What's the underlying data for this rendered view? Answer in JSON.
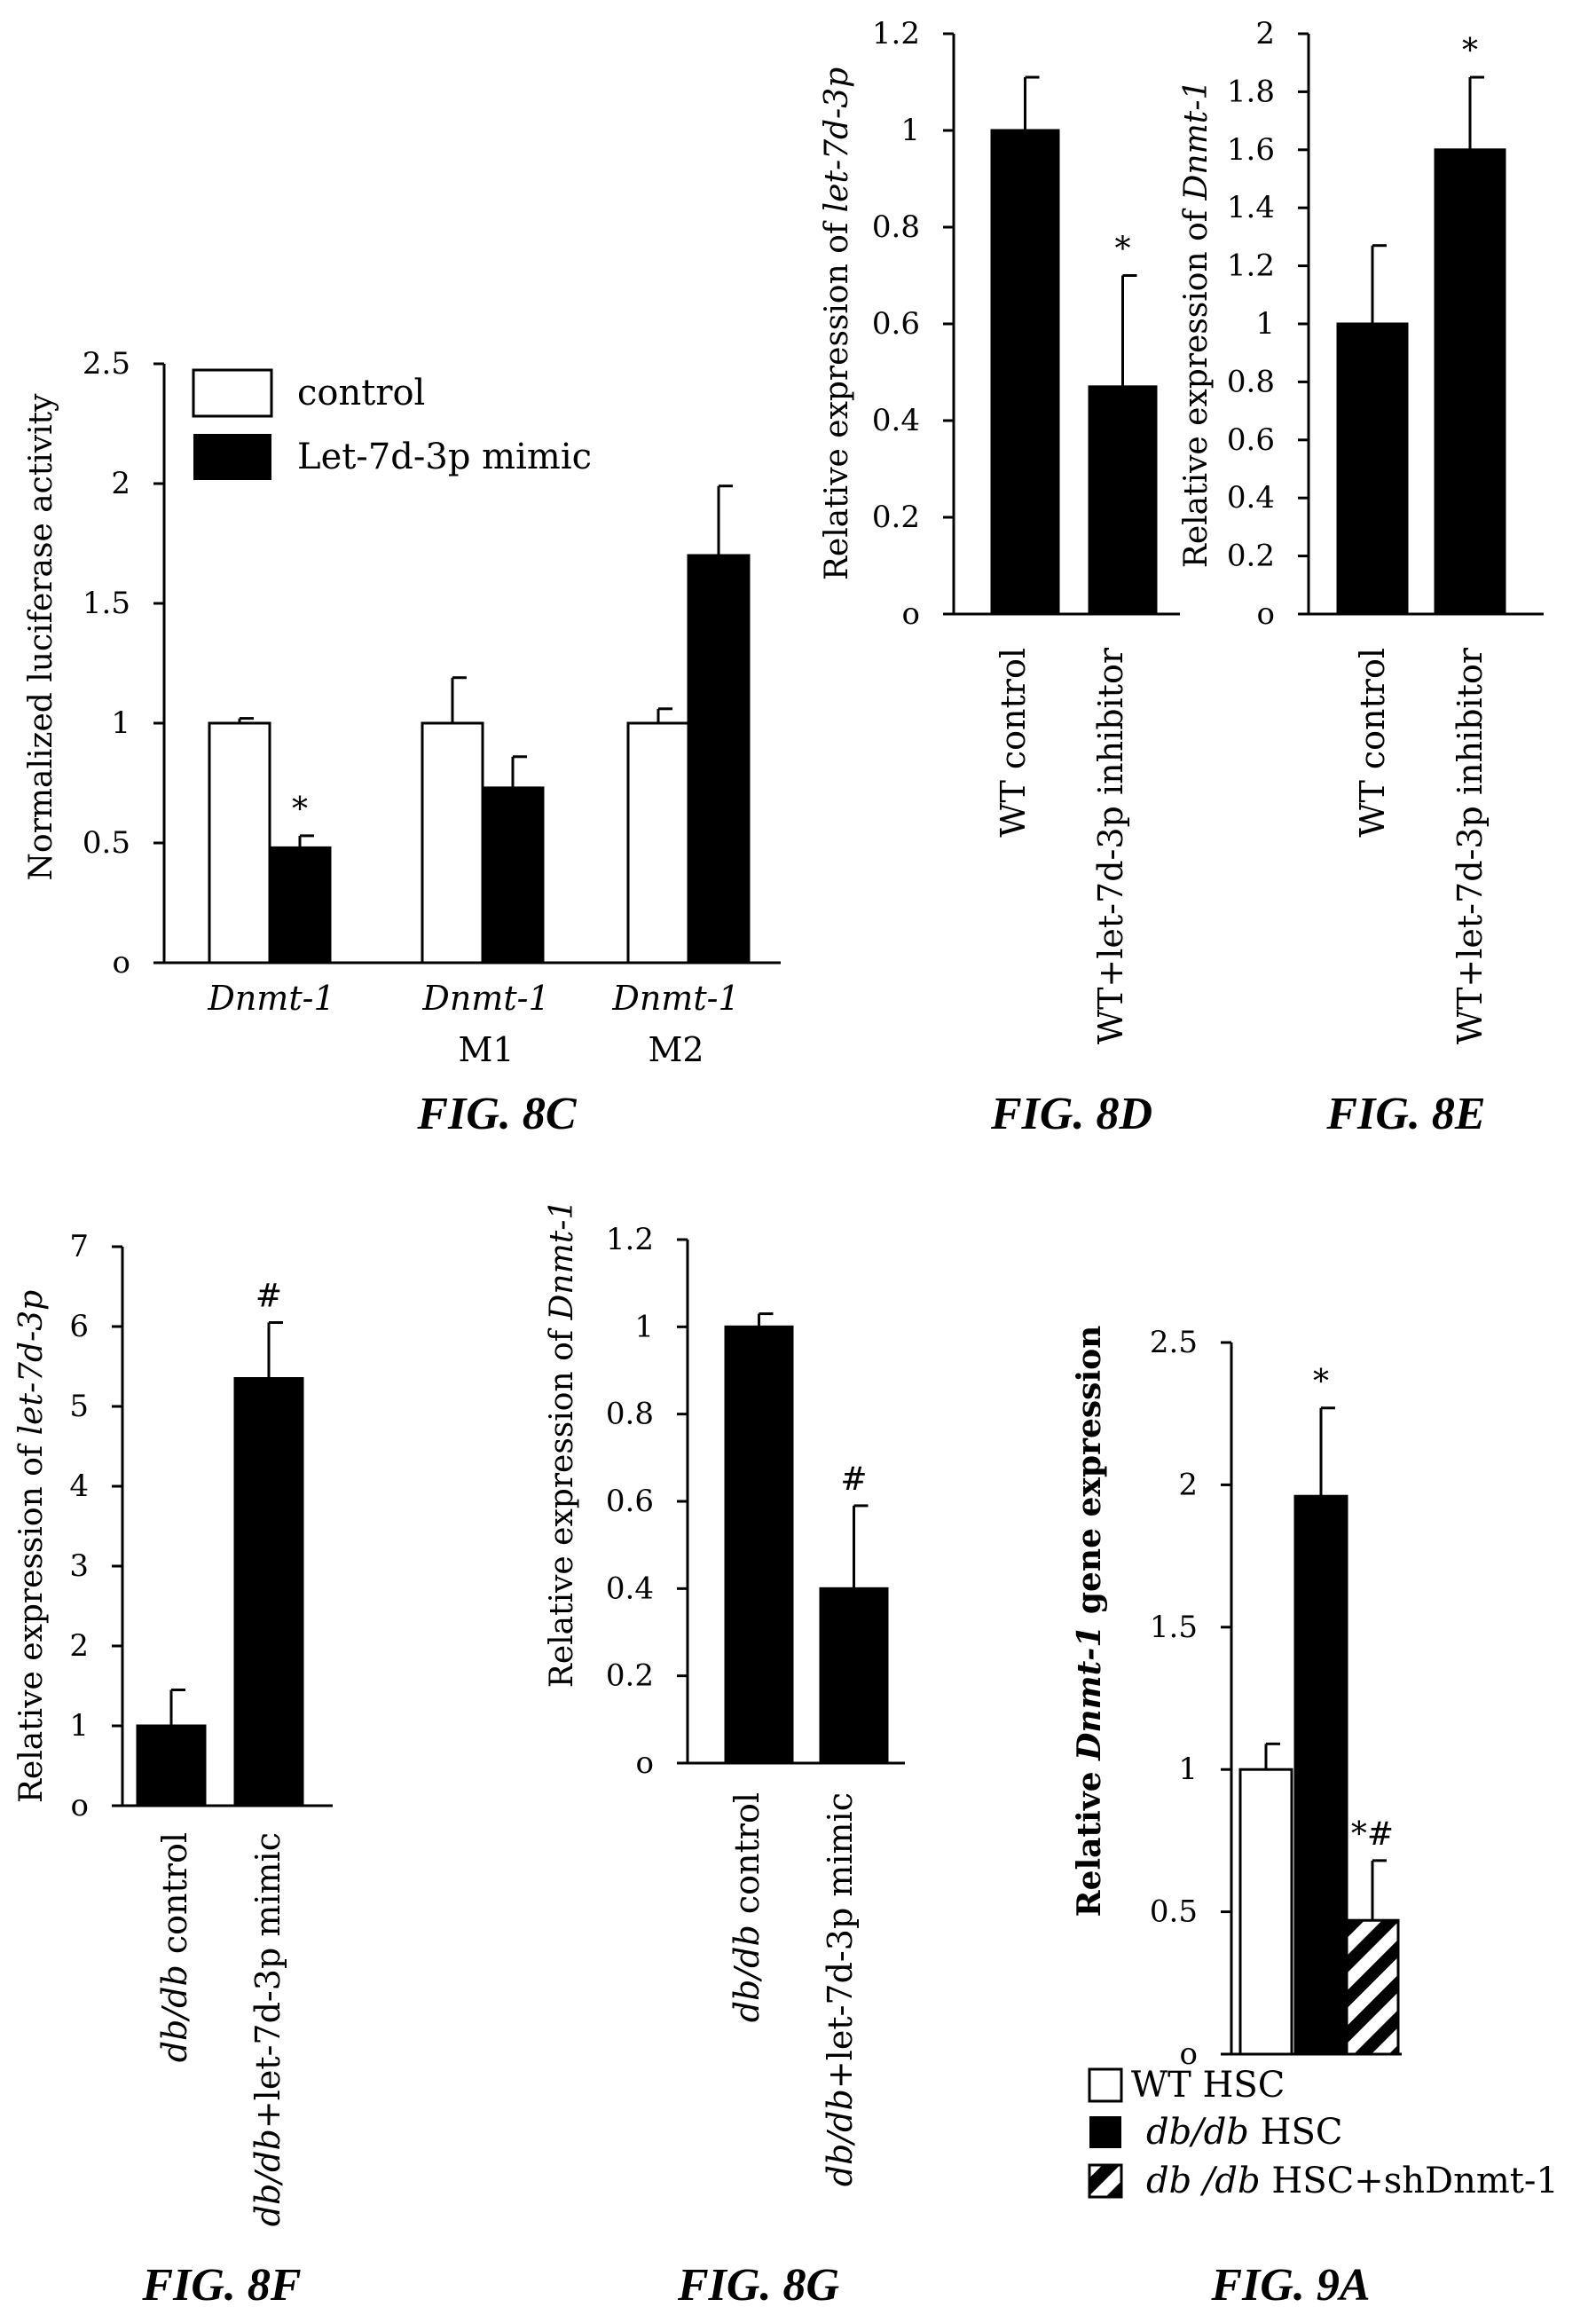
{
  "charts": [
    {
      "figure": "FIG. 8C",
      "type": "bar",
      "ylabel": "Normalized luciferase activity",
      "ylim": [
        0,
        2.5
      ],
      "yticks": [
        "o",
        "0.5",
        "1",
        "1.5",
        "2",
        "2.5"
      ],
      "categories": [
        {
          "line1": "Dnmt-1",
          "line2": ""
        },
        {
          "line1": "Dnmt-1",
          "line2": "M1"
        },
        {
          "line1": "Dnmt-1",
          "line2": "M2"
        }
      ],
      "series": [
        {
          "name": "control",
          "fill": "#ffffff",
          "values": [
            1.0,
            1.0,
            1.0
          ],
          "errors": [
            0.02,
            0.19,
            0.06
          ],
          "marks": [
            "",
            "",
            ""
          ]
        },
        {
          "name": "Let-7d-3p mimic",
          "fill": "#000000",
          "values": [
            0.48,
            0.73,
            1.7
          ],
          "errors": [
            0.05,
            0.13,
            0.29
          ],
          "marks": [
            "*",
            "",
            ""
          ]
        }
      ]
    },
    {
      "figure": "FIG. 8D",
      "type": "bar",
      "ylabel_prefix": "Relative expression of ",
      "ylabel_italic": "let-7d-3p",
      "ylim": [
        0,
        1.2
      ],
      "yticks": [
        "o",
        "0.2",
        "0.4",
        "0.6",
        "0.8",
        "1",
        "1.2"
      ],
      "categories": [
        "WT control",
        "WT+let-7d-3p inhibitor"
      ],
      "values": [
        1.0,
        0.47
      ],
      "errors": [
        0.11,
        0.23
      ],
      "marks": [
        "",
        "*"
      ]
    },
    {
      "figure": "FIG. 8E",
      "type": "bar",
      "ylabel_prefix": "Relative expression of ",
      "ylabel_italic": "Dnmt-1",
      "ylim": [
        0,
        2
      ],
      "yticks": [
        "o",
        "0.2",
        "0.4",
        "0.6",
        "0.8",
        "1",
        "1.2",
        "1.4",
        "1.6",
        "1.8",
        "2"
      ],
      "categories": [
        "WT control",
        "WT+let-7d-3p inhibitor"
      ],
      "values": [
        1.0,
        1.6
      ],
      "errors": [
        0.27,
        0.25
      ],
      "marks": [
        "",
        "*"
      ]
    },
    {
      "figure": "FIG. 8F",
      "type": "bar",
      "ylabel_prefix": "Relative expression of ",
      "ylabel_italic": "let-7d-3p",
      "ylim": [
        0,
        7
      ],
      "yticks": [
        "o",
        "1",
        "2",
        "3",
        "4",
        "5",
        "6",
        "7"
      ],
      "categories": [
        {
          "italic": "db/db",
          "rest": " control"
        },
        {
          "italic": "db/db",
          "rest": "+let-7d-3p mimic"
        }
      ],
      "values": [
        1.0,
        5.35
      ],
      "errors": [
        0.45,
        0.7
      ],
      "marks": [
        "",
        "#"
      ]
    },
    {
      "figure": "FIG. 8G",
      "type": "bar",
      "ylabel_prefix": "Relative expression of ",
      "ylabel_italic": "Dnmt-1",
      "ylim": [
        0,
        1.2
      ],
      "yticks": [
        "o",
        "0.2",
        "0.4",
        "0.6",
        "0.8",
        "1",
        "1.2"
      ],
      "categories": [
        {
          "italic": "db/db",
          "rest": " control"
        },
        {
          "italic": "db/db",
          "rest": "+let-7d-3p mimic"
        }
      ],
      "values": [
        1.0,
        0.4
      ],
      "errors": [
        0.03,
        0.19
      ],
      "marks": [
        "",
        "#"
      ]
    },
    {
      "figure": "FIG. 9A",
      "type": "bar",
      "ylabel_prefix": "Relative ",
      "ylabel_italic": "Dnmt-1",
      "ylabel_suffix": " gene expression",
      "ylim": [
        0,
        2.5
      ],
      "yticks": [
        "o",
        "0.5",
        "1",
        "1.5",
        "2",
        "2.5"
      ],
      "series": [
        {
          "italic": "",
          "rest": "WT  HSC",
          "fill": "white",
          "value": 1.0,
          "error": 0.09,
          "mark": ""
        },
        {
          "italic": "db/db",
          "rest": " HSC",
          "fill": "black",
          "value": 1.96,
          "error": 0.31,
          "mark": "*"
        },
        {
          "italic": "db /db",
          "rest": " HSC+shDnmt-1",
          "fill": "hatch",
          "value": 0.47,
          "error": 0.21,
          "mark": "*#"
        }
      ]
    }
  ]
}
